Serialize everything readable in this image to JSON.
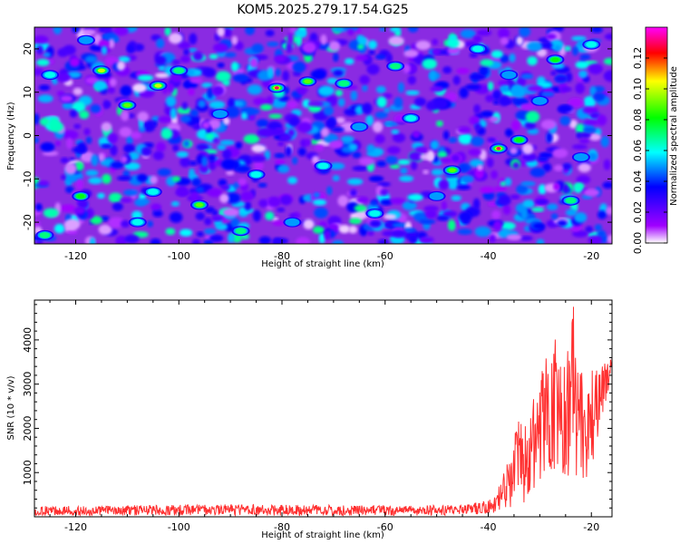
{
  "title": "KOM5.2025.279.17.54.G25",
  "chart_data": [
    {
      "type": "heatmap",
      "xlabel": "Height of straight line (km)",
      "ylabel": "Frequency (Hz)",
      "xlim": [
        -128,
        -16
      ],
      "ylim": [
        -25,
        25
      ],
      "x_ticks": [
        -120,
        -100,
        -80,
        -60,
        -40,
        -20
      ],
      "y_ticks": [
        -20,
        -10,
        0,
        10,
        20
      ],
      "colorbar": {
        "label": "Normalized spectral amplitude",
        "range": [
          0,
          0.14
        ],
        "ticks": [
          "0.00",
          "0.02",
          "0.04",
          "0.06",
          "0.08",
          "0.10",
          "0.12"
        ],
        "colors": [
          "#ffffff",
          "#a000ff",
          "#0000ff",
          "#00ffff",
          "#00ff00",
          "#ffff00",
          "#ff0000",
          "#ff00ff"
        ]
      },
      "hotspots": [
        {
          "x": -81,
          "y": 11,
          "v": 0.13
        },
        {
          "x": -38,
          "y": -3,
          "v": 0.13
        },
        {
          "x": -104,
          "y": 11.5,
          "v": 0.1
        },
        {
          "x": -115,
          "y": 15,
          "v": 0.1
        },
        {
          "x": -110,
          "y": 7,
          "v": 0.09
        },
        {
          "x": -75,
          "y": 12.5,
          "v": 0.09
        },
        {
          "x": -96,
          "y": -16,
          "v": 0.09
        },
        {
          "x": -47,
          "y": -8,
          "v": 0.09
        },
        {
          "x": -27,
          "y": 17.5,
          "v": 0.08
        },
        {
          "x": -34,
          "y": -1,
          "v": 0.08
        },
        {
          "x": -119,
          "y": -14,
          "v": 0.08
        },
        {
          "x": -58,
          "y": 16,
          "v": 0.07
        },
        {
          "x": -68,
          "y": 12,
          "v": 0.07
        },
        {
          "x": -100,
          "y": 15,
          "v": 0.07
        },
        {
          "x": -88,
          "y": -22,
          "v": 0.07
        },
        {
          "x": -24,
          "y": -15,
          "v": 0.07
        },
        {
          "x": -105,
          "y": -13,
          "v": 0.06
        },
        {
          "x": -125,
          "y": 14,
          "v": 0.06
        },
        {
          "x": -108,
          "y": -20,
          "v": 0.06
        },
        {
          "x": -85,
          "y": -9,
          "v": 0.06
        },
        {
          "x": -42,
          "y": 20,
          "v": 0.06
        },
        {
          "x": -72,
          "y": -7,
          "v": 0.06
        },
        {
          "x": -55,
          "y": 4,
          "v": 0.06
        },
        {
          "x": -62,
          "y": -18,
          "v": 0.06
        },
        {
          "x": -30,
          "y": 8,
          "v": 0.05
        },
        {
          "x": -20,
          "y": 21,
          "v": 0.06
        },
        {
          "x": -126,
          "y": -23,
          "v": 0.07
        },
        {
          "x": -92,
          "y": 5,
          "v": 0.05
        },
        {
          "x": -50,
          "y": -14,
          "v": 0.05
        },
        {
          "x": -118,
          "y": 22,
          "v": 0.05
        },
        {
          "x": -36,
          "y": 14,
          "v": 0.05
        },
        {
          "x": -78,
          "y": -20,
          "v": 0.05
        },
        {
          "x": -65,
          "y": 2,
          "v": 0.05
        },
        {
          "x": -22,
          "y": -5,
          "v": 0.05
        }
      ]
    },
    {
      "type": "line",
      "xlabel": "Height of straight line (km)",
      "ylabel": "SNR (10 * v/v)",
      "xlim": [
        -128,
        -16
      ],
      "ylim": [
        0,
        4900
      ],
      "x_ticks": [
        -120,
        -100,
        -80,
        -60,
        -40,
        -20
      ],
      "y_ticks": [
        1000,
        2000,
        3000,
        4000
      ],
      "color": "#ff3030",
      "x": [
        -128,
        -120,
        -110,
        -100,
        -90,
        -80,
        -70,
        -60,
        -50,
        -45,
        -42,
        -40,
        -38,
        -36,
        -35,
        -34,
        -33,
        -32,
        -31,
        -30,
        -29,
        -28,
        -27,
        -26,
        -25,
        -24,
        -23.5,
        -23,
        -22,
        -21,
        -20,
        -19,
        -18,
        -17,
        -16
      ],
      "values": [
        120,
        140,
        150,
        160,
        170,
        150,
        160,
        150,
        150,
        160,
        190,
        240,
        400,
        700,
        1000,
        1600,
        1200,
        1300,
        1900,
        2000,
        2600,
        1600,
        3400,
        1700,
        2500,
        3000,
        4900,
        2300,
        2400,
        2000,
        2600,
        2700,
        2900,
        3200,
        3400
      ],
      "envelope_max": [
        240,
        250,
        260,
        270,
        280,
        270,
        270,
        260,
        260,
        280,
        330,
        400,
        700,
        1300,
        1900,
        2200,
        2100,
        2300,
        2800,
        2900,
        3800,
        3200,
        4300,
        3400,
        3800,
        3900,
        4900,
        3500,
        3300,
        3000,
        3500,
        3400,
        3400,
        3600,
        3650
      ],
      "envelope_min": [
        30,
        30,
        30,
        30,
        30,
        30,
        30,
        30,
        30,
        40,
        60,
        80,
        100,
        150,
        300,
        400,
        300,
        500,
        600,
        700,
        900,
        600,
        1100,
        500,
        800,
        1000,
        1300,
        700,
        900,
        800,
        1100,
        1600,
        2200,
        2700,
        3000
      ]
    }
  ]
}
